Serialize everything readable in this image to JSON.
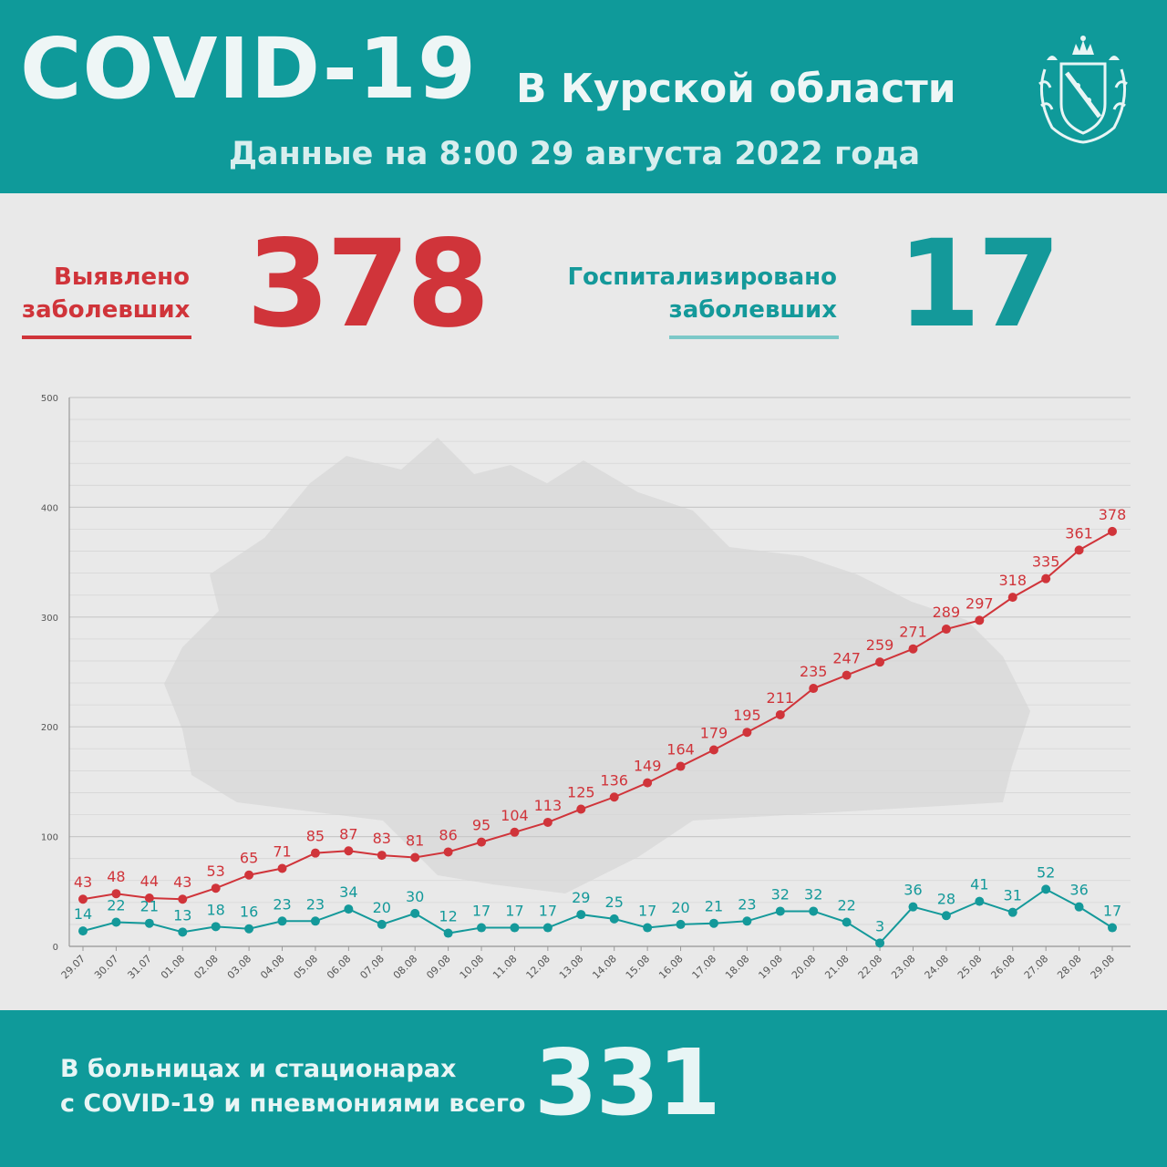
{
  "header": {
    "title": "COVID-19",
    "subtitle": "В Курской области",
    "date_line": "Данные на 8:00 29 августа 2022 года"
  },
  "stats": {
    "detected": {
      "label_line1": "Выявлено",
      "label_line2": "заболевших",
      "value": "378"
    },
    "hospitalized": {
      "label_line1": "Госпитализировано",
      "label_line2": "заболевших",
      "value": "17"
    }
  },
  "footer": {
    "text_line1": "В больницах и стационарах",
    "text_line2": "с COVID-19 и пневмониями всего",
    "value": "331"
  },
  "colors": {
    "teal": "#0f9a9a",
    "red": "#d0343a",
    "teal_series": "#14999a"
  },
  "icons": {
    "emblem": "kursk-coat-of-arms-icon"
  },
  "chart_data": {
    "type": "line",
    "categories": [
      "29.07",
      "30.07",
      "31.07",
      "01.08",
      "02.08",
      "03.08",
      "04.08",
      "05.08",
      "06.08",
      "07.08",
      "08.08",
      "09.08",
      "10.08",
      "11.08",
      "12.08",
      "13.08",
      "14.08",
      "15.08",
      "16.08",
      "17.08",
      "18.08",
      "19.08",
      "20.08",
      "21.08",
      "22.08",
      "23.08",
      "24.08",
      "25.08",
      "26.08",
      "27.08",
      "28.08",
      "29.08"
    ],
    "series": [
      {
        "color": "#d0343a",
        "values": [
          43,
          48,
          44,
          43,
          53,
          65,
          71,
          85,
          87,
          83,
          81,
          86,
          95,
          104,
          113,
          125,
          136,
          149,
          164,
          179,
          195,
          211,
          235,
          247,
          259,
          271,
          289,
          297,
          318,
          335,
          361,
          378
        ]
      },
      {
        "color": "#14999a",
        "values": [
          14,
          22,
          21,
          13,
          18,
          16,
          23,
          23,
          34,
          20,
          30,
          12,
          17,
          17,
          17,
          29,
          25,
          17,
          20,
          21,
          23,
          32,
          32,
          22,
          3,
          36,
          28,
          41,
          31,
          52,
          36,
          17
        ]
      }
    ],
    "ylim": [
      0,
      500
    ],
    "yticks": [
      0,
      100,
      200,
      300,
      400,
      500
    ],
    "grid": true
  }
}
